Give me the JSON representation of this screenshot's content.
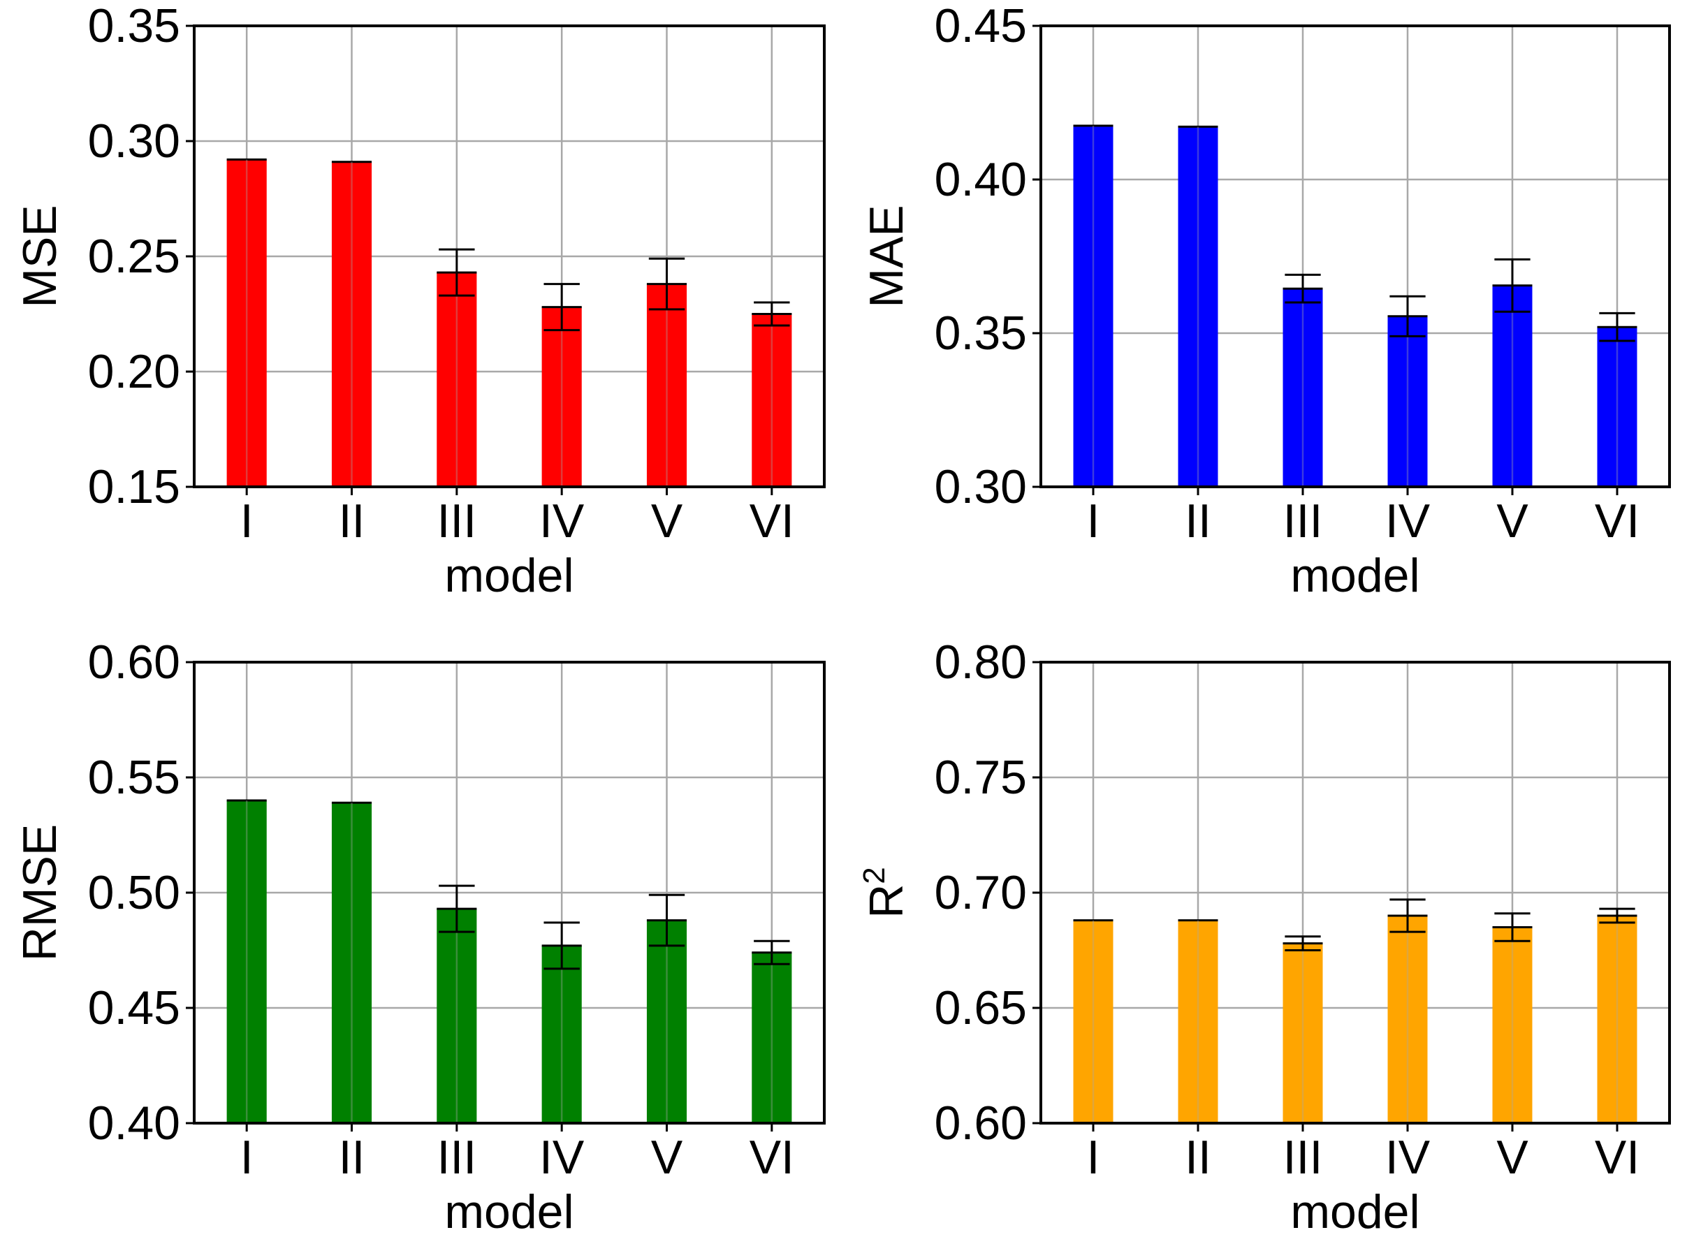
{
  "chart_data": [
    {
      "type": "bar",
      "categories": [
        "I",
        "II",
        "III",
        "IV",
        "V",
        "VI"
      ],
      "values": [
        0.292,
        0.291,
        0.243,
        0.228,
        0.238,
        0.225
      ],
      "errors": [
        0.0,
        0.0,
        0.01,
        0.01,
        0.011,
        0.005
      ],
      "xlabel": "model",
      "ylabel": "MSE",
      "ylabel_sup": "",
      "ylim": [
        0.15,
        0.35
      ],
      "yticks": [
        "0.15",
        "0.20",
        "0.25",
        "0.30",
        "0.35"
      ],
      "color": "#ff0000",
      "grid": true
    },
    {
      "type": "bar",
      "categories": [
        "I",
        "II",
        "III",
        "IV",
        "V",
        "VI"
      ],
      "values": [
        0.4175,
        0.4172,
        0.3645,
        0.3555,
        0.3655,
        0.352
      ],
      "errors": [
        0.0,
        0.0,
        0.0045,
        0.0065,
        0.0085,
        0.0045
      ],
      "xlabel": "model",
      "ylabel": "MAE",
      "ylabel_sup": "",
      "ylim": [
        0.3,
        0.45
      ],
      "yticks": [
        "0.30",
        "0.35",
        "0.40",
        "0.45"
      ],
      "color": "#0000ff",
      "grid": true
    },
    {
      "type": "bar",
      "categories": [
        "I",
        "II",
        "III",
        "IV",
        "V",
        "VI"
      ],
      "values": [
        0.54,
        0.539,
        0.493,
        0.477,
        0.488,
        0.474
      ],
      "errors": [
        0.0,
        0.0,
        0.01,
        0.01,
        0.011,
        0.005
      ],
      "xlabel": "model",
      "ylabel": "RMSE",
      "ylabel_sup": "",
      "ylim": [
        0.4,
        0.6
      ],
      "yticks": [
        "0.40",
        "0.45",
        "0.50",
        "0.55",
        "0.60"
      ],
      "color": "#008000",
      "grid": true
    },
    {
      "type": "bar",
      "categories": [
        "I",
        "II",
        "III",
        "IV",
        "V",
        "VI"
      ],
      "values": [
        0.688,
        0.688,
        0.678,
        0.69,
        0.685,
        0.69
      ],
      "errors": [
        0.0,
        0.0,
        0.003,
        0.007,
        0.006,
        0.003
      ],
      "xlabel": "model",
      "ylabel": "R",
      "ylabel_sup": "2",
      "ylim": [
        0.6,
        0.8
      ],
      "yticks": [
        "0.60",
        "0.65",
        "0.70",
        "0.75",
        "0.80"
      ],
      "color": "#ffa500",
      "grid": true
    }
  ]
}
